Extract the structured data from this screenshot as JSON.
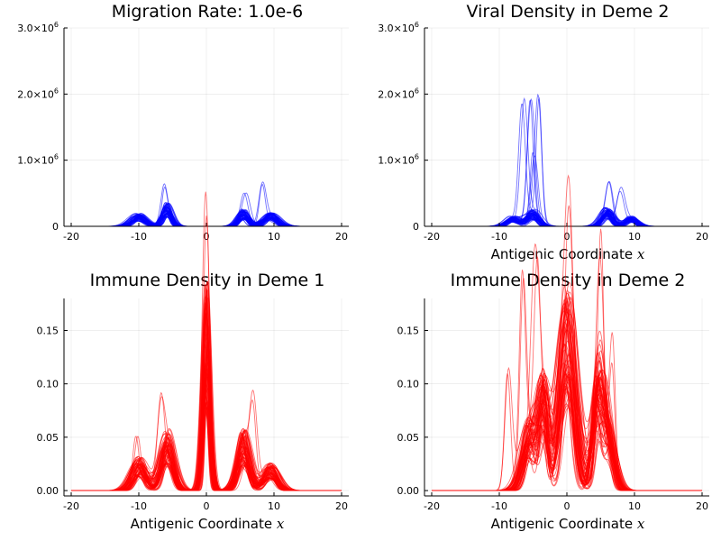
{
  "chart_data": [
    {
      "type": "line",
      "title": "Migration Rate: 1.0e-6",
      "xlabel": "",
      "ylabel": "",
      "xlim": [
        -20,
        20
      ],
      "ylim": [
        0,
        3000000
      ],
      "xticks": [
        -20,
        -10,
        0,
        10,
        20
      ],
      "xtick_labels": [
        "-20",
        "-10",
        "0",
        "10",
        "20"
      ],
      "yticks": [
        0,
        1000000,
        2000000,
        3000000
      ],
      "ytick_labels": [
        {
          "base": "0",
          "exp": ""
        },
        {
          "base": "1.0×10",
          "exp": "6"
        },
        {
          "base": "2.0×10",
          "exp": "6"
        },
        {
          "base": "3.0×10",
          "exp": "6"
        }
      ],
      "grid": true,
      "color": "#0000ff",
      "line_opacity": 0.55,
      "series_count": 60,
      "peaks": [
        {
          "center": -10,
          "width": 1.1,
          "height": 150000
        },
        {
          "center": -5.8,
          "width": 0.75,
          "height": 280000
        },
        {
          "center": 5.5,
          "width": 0.8,
          "height": 200000
        },
        {
          "center": 9.5,
          "width": 1.1,
          "height": 160000
        }
      ],
      "spikes": [
        {
          "center": -6,
          "height": 470000
        },
        {
          "center": 8.5,
          "height": 640000
        },
        {
          "center": 5.8,
          "height": 330000
        }
      ]
    },
    {
      "type": "line",
      "title": "Viral Density in Deme 2",
      "xlabel": "Antigenic Coordinate",
      "xlabel_var": "x",
      "ylabel": "",
      "xlim": [
        -20,
        20
      ],
      "ylim": [
        0,
        3000000
      ],
      "xticks": [
        -20,
        -10,
        0,
        10,
        20
      ],
      "xtick_labels": [
        "-20",
        "-10",
        "0",
        "10",
        "20"
      ],
      "yticks": [
        0,
        1000000,
        2000000,
        3000000
      ],
      "ytick_labels": [
        {
          "base": "0",
          "exp": ""
        },
        {
          "base": "1.0×10",
          "exp": "6"
        },
        {
          "base": "2.0×10",
          "exp": "6"
        },
        {
          "base": "3.0×10",
          "exp": "6"
        }
      ],
      "grid": true,
      "color": "#0000ff",
      "line_opacity": 0.55,
      "series_count": 60,
      "peaks": [
        {
          "center": -8,
          "width": 1.0,
          "height": 120000
        },
        {
          "center": -5,
          "width": 0.9,
          "height": 200000
        },
        {
          "center": 6,
          "width": 0.9,
          "height": 220000
        },
        {
          "center": 9.5,
          "width": 0.9,
          "height": 120000
        }
      ],
      "spikes": [
        {
          "center": -6.5,
          "height": 1930000
        },
        {
          "center": -5.5,
          "height": 1840000
        },
        {
          "center": -4.2,
          "height": 1840000
        },
        {
          "center": -5,
          "height": 1080000
        },
        {
          "center": 8,
          "height": 570000
        },
        {
          "center": 6.5,
          "height": 530000
        }
      ]
    },
    {
      "type": "line",
      "title": "Immune Density in Deme 1",
      "xlabel": "Antigenic Coordinate",
      "xlabel_var": "x",
      "ylabel": "",
      "xlim": [
        -20,
        20
      ],
      "ylim": [
        -0.005,
        0.18
      ],
      "xticks": [
        -20,
        -10,
        0,
        10,
        20
      ],
      "xtick_labels": [
        "-20",
        "-10",
        "0",
        "10",
        "20"
      ],
      "yticks": [
        0,
        0.05,
        0.1,
        0.15
      ],
      "ytick_labels": [
        {
          "base": "0.00",
          "exp": ""
        },
        {
          "base": "0.05",
          "exp": ""
        },
        {
          "base": "0.10",
          "exp": ""
        },
        {
          "base": "0.15",
          "exp": ""
        }
      ],
      "grid": true,
      "color": "#ff0000",
      "line_opacity": 0.55,
      "series_count": 70,
      "peaks": [
        {
          "center": 0,
          "width": 0.55,
          "height": 0.155
        },
        {
          "center": -5.8,
          "width": 1.0,
          "height": 0.045
        },
        {
          "center": 5.5,
          "width": 1.0,
          "height": 0.045
        },
        {
          "center": -10,
          "width": 1.1,
          "height": 0.025
        },
        {
          "center": 9.5,
          "width": 1.1,
          "height": 0.02
        }
      ],
      "spikes": [
        {
          "center": 0,
          "height": 0.175
        },
        {
          "center": 7,
          "height": 0.08
        },
        {
          "center": -7,
          "height": 0.077
        },
        {
          "center": -10.2,
          "height": 0.038
        }
      ]
    },
    {
      "type": "line",
      "title": "Immune Density in Deme 2",
      "xlabel": "Antigenic Coordinate",
      "xlabel_var": "x",
      "ylabel": "",
      "xlim": [
        -20,
        20
      ],
      "ylim": [
        -0.005,
        0.18
      ],
      "xticks": [
        -20,
        -10,
        0,
        10,
        20
      ],
      "xtick_labels": [
        "-20",
        "-10",
        "0",
        "10",
        "20"
      ],
      "yticks": [
        0,
        0.05,
        0.1,
        0.15
      ],
      "ytick_labels": [
        {
          "base": "0.00",
          "exp": ""
        },
        {
          "base": "0.05",
          "exp": ""
        },
        {
          "base": "0.10",
          "exp": ""
        },
        {
          "base": "0.15",
          "exp": ""
        }
      ],
      "grid": true,
      "color": "#ff0000",
      "line_opacity": 0.55,
      "series_count": 70,
      "peaks": [
        {
          "center": 0,
          "width": 1.3,
          "height": 0.15
        },
        {
          "center": -5.5,
          "width": 1.1,
          "height": 0.055
        },
        {
          "center": 6,
          "width": 1.0,
          "height": 0.055
        },
        {
          "center": -3.5,
          "width": 0.8,
          "height": 0.08
        },
        {
          "center": 4.5,
          "width": 0.8,
          "height": 0.08
        }
      ],
      "spikes": [
        {
          "center": -6.5,
          "height": 0.165
        },
        {
          "center": -4.5,
          "height": 0.165
        },
        {
          "center": 5,
          "height": 0.165
        },
        {
          "center": 0.5,
          "height": 0.175
        },
        {
          "center": -8.5,
          "height": 0.12
        },
        {
          "center": 7,
          "height": 0.12
        }
      ]
    }
  ]
}
